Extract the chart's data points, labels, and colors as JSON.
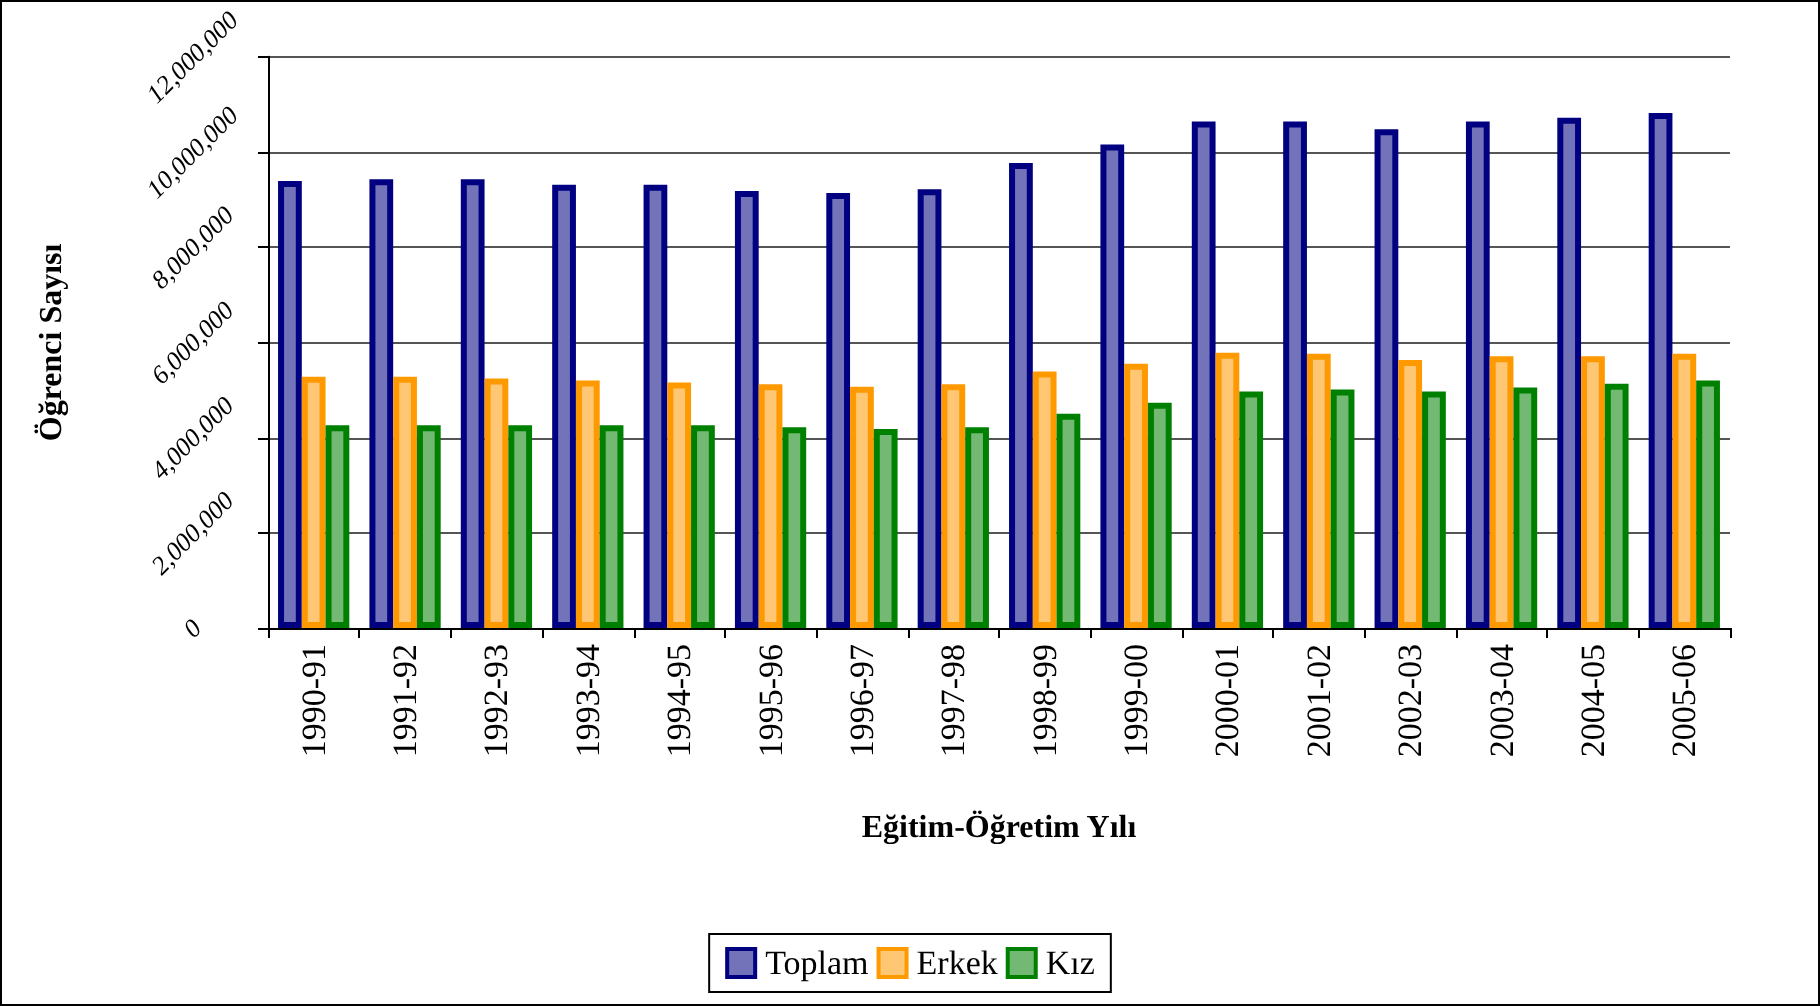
{
  "chart_data": {
    "type": "bar",
    "xlabel": "Eğitim-Öğretim Yılı",
    "ylabel": "Öğrenci Sayısı",
    "categories": [
      "1990-91",
      "1991-92",
      "1992-93",
      "1993-94",
      "1994-95",
      "1995-96",
      "1996-97",
      "1997-98",
      "1998-99",
      "1999-00",
      "2000-01",
      "2001-02",
      "2002-03",
      "2003-04",
      "2004-05",
      "2005-06"
    ],
    "series": [
      {
        "name": "Toplam",
        "color": "#000080",
        "values": [
          9390000,
          9430000,
          9430000,
          9310000,
          9310000,
          9180000,
          9140000,
          9220000,
          9770000,
          10160000,
          10640000,
          10640000,
          10480000,
          10640000,
          10720000,
          10820000
        ]
      },
      {
        "name": "Erkek",
        "color": "#ff9900",
        "values": [
          5280000,
          5280000,
          5240000,
          5200000,
          5160000,
          5120000,
          5070000,
          5120000,
          5390000,
          5550000,
          5780000,
          5760000,
          5630000,
          5710000,
          5710000,
          5760000
        ]
      },
      {
        "name": "Kız",
        "color": "#008000",
        "values": [
          4260000,
          4260000,
          4260000,
          4260000,
          4260000,
          4220000,
          4180000,
          4220000,
          4500000,
          4730000,
          4970000,
          5010000,
          4970000,
          5050000,
          5130000,
          5200000
        ]
      }
    ],
    "ylim": [
      0,
      12000000
    ],
    "yticks": [
      0,
      {
        "value": 2000000,
        "label": "2,000,000"
      },
      {
        "value": 4000000,
        "label": "4,000,000"
      },
      {
        "value": 6000000,
        "label": "6,000,000"
      },
      {
        "value": 8000000,
        "label": "8,000,000"
      },
      {
        "value": 10000000,
        "label": "10,000,000"
      },
      {
        "value": 12000000,
        "label": "12,000,000"
      }
    ],
    "grid": "y",
    "legend": "bottom"
  }
}
